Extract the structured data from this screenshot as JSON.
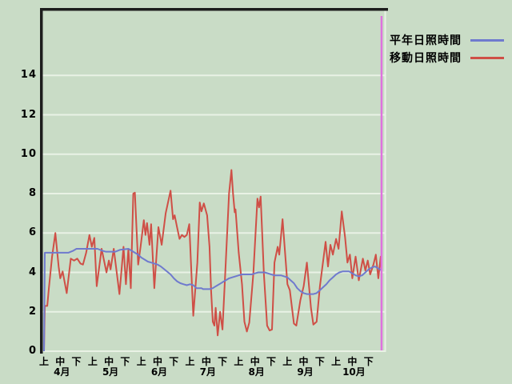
{
  "colors": {
    "background": "#c9dcc6",
    "gridline": "#e9f2e5",
    "axis_border": "#1d1d1d",
    "series_normal": "#6f7ace",
    "series_moving": "#cf4f46",
    "marker": "#de72de",
    "text": "#000000"
  },
  "legend": {
    "items": [
      {
        "label": "平年日照時間",
        "color": "#6f7ace"
      },
      {
        "label": "移動日照時間",
        "color": "#cf4f46"
      }
    ]
  },
  "chart_data": {
    "type": "line",
    "title": "",
    "xlabel": "",
    "ylabel": "",
    "ylim": [
      0,
      17.3
    ],
    "yticks": [
      0,
      2,
      4,
      6,
      8,
      10,
      12,
      14
    ],
    "grid": "horizontal-only",
    "legend_position": "outside-top-right",
    "x_axis": {
      "months": [
        "4月",
        "5月",
        "6月",
        "7月",
        "8月",
        "9月",
        "10月"
      ],
      "period_labels": [
        "上",
        "中",
        "下"
      ],
      "days_per_month": 30,
      "unit": "day-index (0 = start of 4月上)"
    },
    "marker_line": {
      "day": 208,
      "color": "#de72de"
    },
    "series": [
      {
        "name": "平年日照時間",
        "color": "#6f7ace",
        "points": [
          [
            0,
            0
          ],
          [
            0.5,
            5.0
          ],
          [
            15,
            5.0
          ],
          [
            18,
            5.1
          ],
          [
            20,
            5.2
          ],
          [
            33,
            5.2
          ],
          [
            36,
            5.1
          ],
          [
            38,
            5.05
          ],
          [
            44,
            5.05
          ],
          [
            47,
            5.15
          ],
          [
            52,
            5.2
          ],
          [
            54,
            5.1
          ],
          [
            56,
            5.0
          ],
          [
            58,
            4.9
          ],
          [
            60,
            4.75
          ],
          [
            62,
            4.65
          ],
          [
            64,
            4.55
          ],
          [
            66,
            4.5
          ],
          [
            68,
            4.45
          ],
          [
            70,
            4.4
          ],
          [
            72,
            4.3
          ],
          [
            75,
            4.1
          ],
          [
            78,
            3.9
          ],
          [
            80,
            3.7
          ],
          [
            82,
            3.55
          ],
          [
            84,
            3.45
          ],
          [
            86,
            3.4
          ],
          [
            88,
            3.35
          ],
          [
            90,
            3.4
          ],
          [
            92,
            3.35
          ],
          [
            94,
            3.2
          ],
          [
            97,
            3.2
          ],
          [
            98,
            3.15
          ],
          [
            102,
            3.15
          ],
          [
            104,
            3.2
          ],
          [
            106,
            3.3
          ],
          [
            108,
            3.4
          ],
          [
            110,
            3.5
          ],
          [
            112,
            3.6
          ],
          [
            114,
            3.7
          ],
          [
            116,
            3.75
          ],
          [
            118,
            3.8
          ],
          [
            120,
            3.85
          ],
          [
            122,
            3.9
          ],
          [
            128,
            3.9
          ],
          [
            130,
            3.95
          ],
          [
            132,
            4.0
          ],
          [
            136,
            4.0
          ],
          [
            138,
            3.95
          ],
          [
            140,
            3.9
          ],
          [
            142,
            3.85
          ],
          [
            146,
            3.85
          ],
          [
            148,
            3.8
          ],
          [
            150,
            3.75
          ],
          [
            152,
            3.6
          ],
          [
            154,
            3.45
          ],
          [
            156,
            3.2
          ],
          [
            158,
            3.05
          ],
          [
            160,
            2.95
          ],
          [
            162,
            2.9
          ],
          [
            166,
            2.9
          ],
          [
            168,
            2.95
          ],
          [
            170,
            3.1
          ],
          [
            172,
            3.25
          ],
          [
            174,
            3.4
          ],
          [
            176,
            3.6
          ],
          [
            178,
            3.75
          ],
          [
            180,
            3.9
          ],
          [
            182,
            4.0
          ],
          [
            184,
            4.05
          ],
          [
            188,
            4.05
          ],
          [
            190,
            3.95
          ],
          [
            192,
            3.85
          ],
          [
            194,
            3.8
          ],
          [
            196,
            3.85
          ],
          [
            198,
            4.0
          ],
          [
            200,
            4.15
          ],
          [
            202,
            4.25
          ],
          [
            204,
            4.3
          ],
          [
            206,
            4.2
          ],
          [
            208,
            4.1
          ]
        ]
      },
      {
        "name": "移動日照時間",
        "color": "#cf4f46",
        "points": [
          [
            0,
            0
          ],
          [
            0.5,
            2.3
          ],
          [
            2,
            2.3
          ],
          [
            3,
            3.2
          ],
          [
            5,
            4.8
          ],
          [
            7,
            6.0
          ],
          [
            9,
            4.3
          ],
          [
            10,
            3.7
          ],
          [
            11.5,
            4.05
          ],
          [
            14,
            2.95
          ],
          [
            16.5,
            4.7
          ],
          [
            18.5,
            4.6
          ],
          [
            20.5,
            4.7
          ],
          [
            22.5,
            4.45
          ],
          [
            24,
            4.4
          ],
          [
            26,
            5.0
          ],
          [
            28,
            5.9
          ],
          [
            29.5,
            5.3
          ],
          [
            31,
            5.75
          ],
          [
            32.5,
            3.3
          ],
          [
            35.5,
            5.2
          ],
          [
            38.5,
            4.0
          ],
          [
            40,
            4.6
          ],
          [
            41,
            4.15
          ],
          [
            43,
            5.2
          ],
          [
            46.5,
            2.9
          ],
          [
            49,
            5.3
          ],
          [
            50.5,
            3.4
          ],
          [
            52,
            5.2
          ],
          [
            53.5,
            3.2
          ],
          [
            55,
            8.0
          ],
          [
            56,
            8.05
          ],
          [
            58,
            4.4
          ],
          [
            59.5,
            5.3
          ],
          [
            61.5,
            6.65
          ],
          [
            62.5,
            5.9
          ],
          [
            63.5,
            6.5
          ],
          [
            65,
            5.4
          ],
          [
            66,
            6.45
          ],
          [
            68,
            3.2
          ],
          [
            70.5,
            6.3
          ],
          [
            72.5,
            5.4
          ],
          [
            75,
            7.0
          ],
          [
            78,
            8.15
          ],
          [
            79.5,
            6.7
          ],
          [
            80.5,
            6.9
          ],
          [
            82,
            6.3
          ],
          [
            83.5,
            5.7
          ],
          [
            85,
            5.9
          ],
          [
            86.5,
            5.8
          ],
          [
            88,
            5.9
          ],
          [
            89.5,
            6.45
          ],
          [
            92,
            1.8
          ],
          [
            94.5,
            4.5
          ],
          [
            96,
            7.55
          ],
          [
            97,
            7.1
          ],
          [
            98.5,
            7.5
          ],
          [
            100.5,
            6.9
          ],
          [
            102,
            5.3
          ],
          [
            103,
            3.05
          ],
          [
            104,
            1.5
          ],
          [
            105,
            1.3
          ],
          [
            105.8,
            2.2
          ],
          [
            107,
            0.8
          ],
          [
            108.5,
            2.0
          ],
          [
            110,
            1.1
          ],
          [
            112,
            4.5
          ],
          [
            114,
            8.0
          ],
          [
            115.5,
            9.2
          ],
          [
            116.5,
            8.0
          ],
          [
            117.5,
            7.05
          ],
          [
            118,
            7.2
          ],
          [
            120,
            5.0
          ],
          [
            122,
            3.4
          ],
          [
            123.5,
            1.5
          ],
          [
            125,
            1.0
          ],
          [
            126.5,
            1.45
          ],
          [
            129,
            3.95
          ],
          [
            131.5,
            7.75
          ],
          [
            132.5,
            7.3
          ],
          [
            133.5,
            7.85
          ],
          [
            135.5,
            3.9
          ],
          [
            137.5,
            1.3
          ],
          [
            139,
            1.05
          ],
          [
            140.5,
            1.1
          ],
          [
            142,
            4.5
          ],
          [
            144,
            5.3
          ],
          [
            145,
            4.9
          ],
          [
            147,
            6.7
          ],
          [
            150,
            3.4
          ],
          [
            151.5,
            3.1
          ],
          [
            154,
            1.4
          ],
          [
            155.5,
            1.3
          ],
          [
            158,
            2.6
          ],
          [
            160,
            3.3
          ],
          [
            162,
            4.5
          ],
          [
            164.5,
            2.2
          ],
          [
            166,
            1.35
          ],
          [
            168,
            1.5
          ],
          [
            170,
            3.3
          ],
          [
            173.5,
            5.55
          ],
          [
            175,
            4.3
          ],
          [
            176.5,
            5.4
          ],
          [
            178,
            4.9
          ],
          [
            180,
            5.7
          ],
          [
            181.5,
            5.2
          ],
          [
            183.5,
            7.1
          ],
          [
            185.5,
            5.8
          ],
          [
            187,
            4.5
          ],
          [
            188.5,
            4.9
          ],
          [
            190,
            3.7
          ],
          [
            192,
            4.8
          ],
          [
            194,
            3.6
          ],
          [
            196.5,
            4.7
          ],
          [
            198,
            4.1
          ],
          [
            199.5,
            4.6
          ],
          [
            201,
            3.9
          ],
          [
            203,
            4.4
          ],
          [
            204.5,
            4.9
          ],
          [
            206,
            3.7
          ],
          [
            207.5,
            4.8
          ],
          [
            208,
            4.1
          ]
        ]
      }
    ]
  }
}
